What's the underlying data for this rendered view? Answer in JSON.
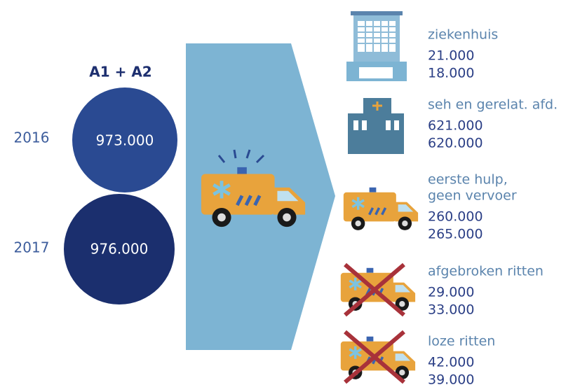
{
  "header": {
    "title": "A1 + A2"
  },
  "totals": [
    {
      "year": "2016",
      "value": "973.000"
    },
    {
      "year": "2017",
      "value": "976.000"
    }
  ],
  "outcomes": [
    {
      "label_lines": [
        "ziekenhuis"
      ],
      "values": [
        "21.000",
        "18.000"
      ]
    },
    {
      "label_lines": [
        "seh en gerelat. afd."
      ],
      "values": [
        "621.000",
        "620.000"
      ]
    },
    {
      "label_lines": [
        "eerste hulp,",
        "geen vervoer"
      ],
      "values": [
        "260.000",
        "265.000"
      ]
    },
    {
      "label_lines": [
        "afgebroken ritten"
      ],
      "values": [
        "29.000",
        "33.000"
      ]
    },
    {
      "label_lines": [
        "loze ritten"
      ],
      "values": [
        "42.000",
        "39.000"
      ]
    }
  ]
}
